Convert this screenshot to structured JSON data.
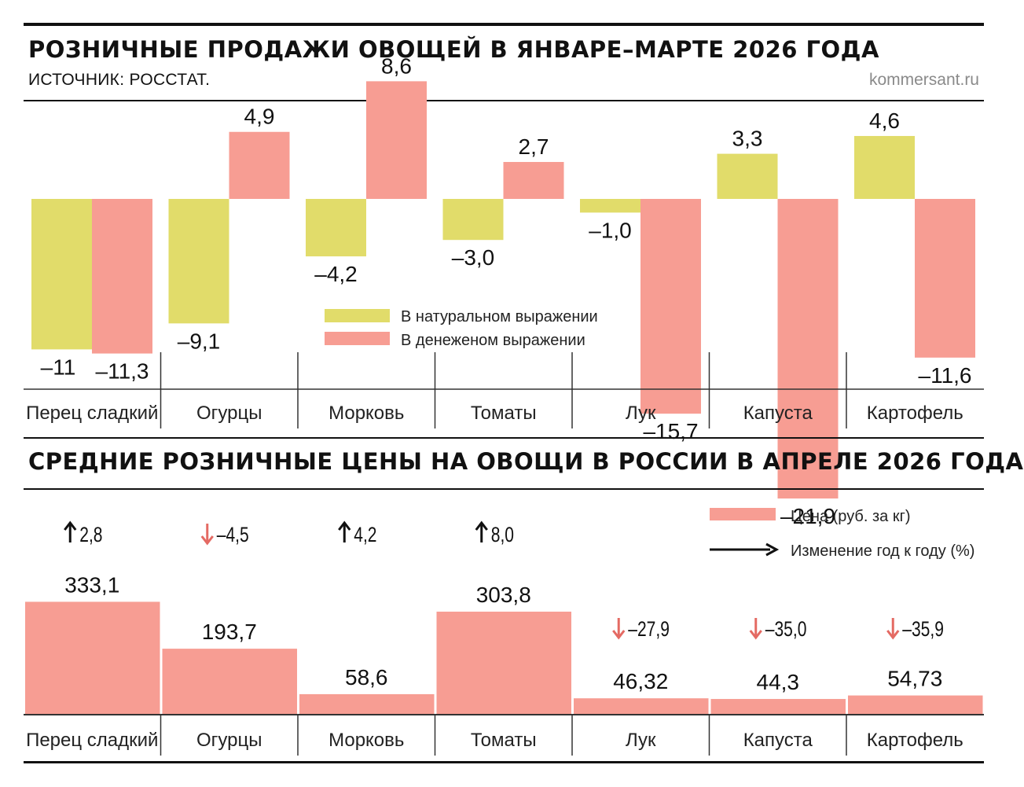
{
  "header": {
    "title1": "РОЗНИЧНЫЕ ПРОДАЖИ ОВОЩЕЙ В ЯНВАРЕ–МАРТЕ 2026 ГОДА",
    "source": "ИСТОЧНИК: РОССТАТ.",
    "site": "kommersant.ru",
    "title2": "СРЕДНИЕ РОЗНИЧНЫЕ ЦЕНЫ НА ОВОЩИ В РОССИИ В АПРЕЛЕ 2026 ГОДА"
  },
  "colors": {
    "natural": "#e1dc6a",
    "money": "#f79d93",
    "up_arrow": "#111111",
    "down_arrow": "#e46a63",
    "rule": "#111111"
  },
  "chart_data": [
    {
      "type": "bar",
      "title": "РОЗНИЧНЫЕ ПРОДАЖИ ОВОЩЕЙ В ЯНВАРЕ–МАРТЕ 2026 ГОДА",
      "categories": [
        "Перец сладкий",
        "Огурцы",
        "Морковь",
        "Томаты",
        "Лук",
        "Капуста",
        "Картофель"
      ],
      "series": [
        {
          "name": "В натуральном выражении",
          "values": [
            -11,
            -9.1,
            -4.2,
            -3.0,
            -1.0,
            3.3,
            4.6
          ],
          "labels": [
            "–11",
            "–9,1",
            "–4,2",
            "–3,0",
            "–1,0",
            "3,3",
            "4,6"
          ]
        },
        {
          "name": "В денеженом выражении",
          "values": [
            -11.3,
            4.9,
            8.6,
            2.7,
            -15.7,
            -21.9,
            -11.6
          ],
          "labels": [
            "–11,3",
            "4,9",
            "8,6",
            "2,7",
            "–15,7",
            "–21,9",
            "–11,6"
          ]
        }
      ],
      "legend_placement": "center",
      "grid": false
    },
    {
      "type": "bar",
      "title": "СРЕДНИЕ РОЗНИЧНЫЕ ЦЕНЫ НА ОВОЩИ В РОССИИ В АПРЕЛЕ 2026 ГОДА",
      "categories": [
        "Перец сладкий",
        "Огурцы",
        "Морковь",
        "Томаты",
        "Лук",
        "Капуста",
        "Картофель"
      ],
      "series": [
        {
          "name": "Цена (руб. за кг)",
          "values": [
            333.1,
            193.7,
            58.6,
            303.8,
            46.32,
            44.3,
            54.73
          ],
          "labels": [
            "333,1",
            "193,7",
            "58,6",
            "303,8",
            "46,32",
            "44,3",
            "54,73"
          ]
        },
        {
          "name": "Изменение год к году (%)",
          "values": [
            2.8,
            -4.5,
            4.2,
            8.0,
            -27.9,
            -35.0,
            -35.9
          ],
          "labels": [
            "2,8",
            "–4,5",
            "4,2",
            "8,0",
            "–27,9",
            "–35,0",
            "–35,9"
          ]
        }
      ],
      "legend_placement": "top-right",
      "grid": false
    }
  ]
}
